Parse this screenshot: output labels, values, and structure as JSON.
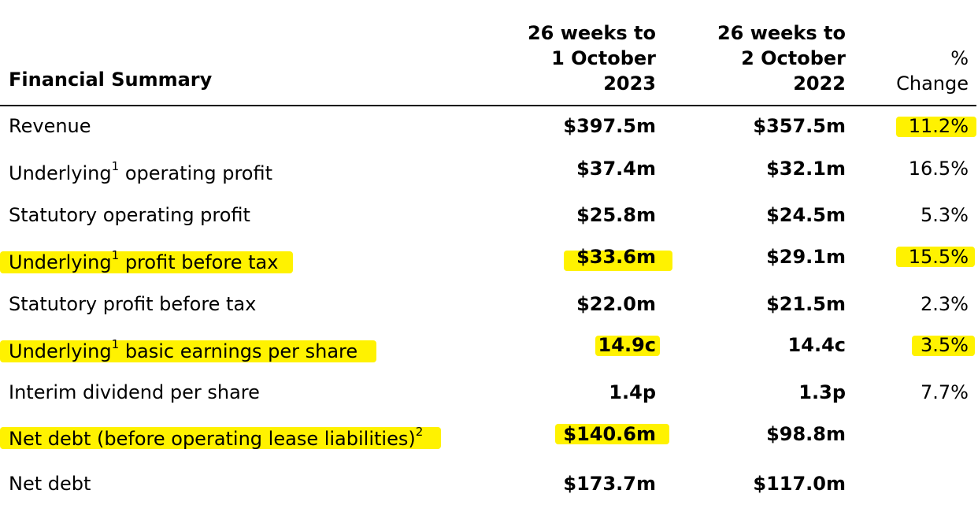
{
  "table": {
    "header": {
      "title": "Financial Summary",
      "col1": [
        "26 weeks to",
        "1 October",
        "2023"
      ],
      "col2": [
        "26 weeks to",
        "2 October",
        "2022"
      ],
      "col3": [
        "%",
        "Change"
      ]
    },
    "rows": [
      {
        "label": "Revenue",
        "sup": "",
        "label_after": "",
        "v1": "$397.5m",
        "v2": "$357.5m",
        "v3": "11.2%"
      },
      {
        "label": "Underlying",
        "sup": "1",
        "label_after": " operating profit",
        "v1": "$37.4m",
        "v2": "$32.1m",
        "v3": "16.5%"
      },
      {
        "label": "Statutory operating profit",
        "sup": "",
        "label_after": "",
        "v1": "$25.8m",
        "v2": "$24.5m",
        "v3": "5.3%"
      },
      {
        "label": "Underlying",
        "sup": "1",
        "label_after": " profit before tax",
        "v1": "$33.6m",
        "v2": "$29.1m",
        "v3": "15.5%"
      },
      {
        "label": "Statutory profit before tax",
        "sup": "",
        "label_after": "",
        "v1": "$22.0m",
        "v2": "$21.5m",
        "v3": "2.3%"
      },
      {
        "label": "Underlying",
        "sup": "1",
        "label_after": " basic earnings per share",
        "v1": "14.9c",
        "v2": "14.4c",
        "v3": "3.5%"
      },
      {
        "label": "Interim dividend per share",
        "sup": "",
        "label_after": "",
        "v1": "1.4p",
        "v2": "1.3p",
        "v3": "7.7%"
      },
      {
        "label": "Net debt (before operating lease liabilities)",
        "sup": "2",
        "label_after": "",
        "v1": "$140.6m",
        "v2": "$98.8m",
        "v3": ""
      },
      {
        "label": "Net debt",
        "sup": "",
        "label_after": "",
        "v1": "$173.7m",
        "v2": "$117.0m",
        "v3": ""
      }
    ]
  },
  "highlight_color": "#fff200"
}
